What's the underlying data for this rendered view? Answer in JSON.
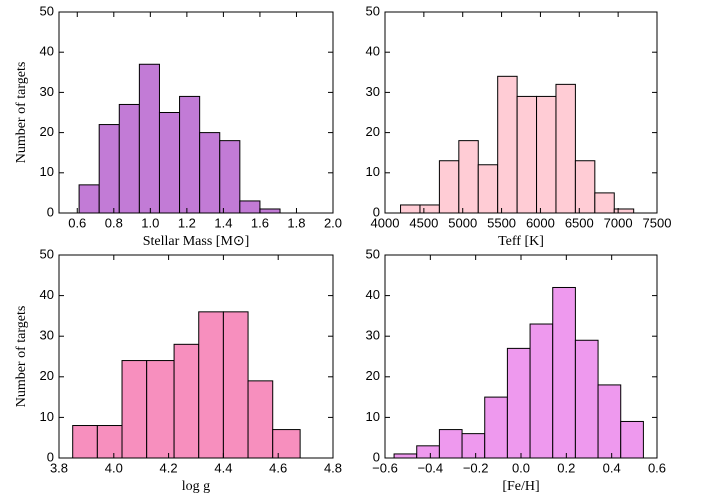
{
  "chart_data": [
    {
      "type": "histogram",
      "xlabel": "Stellar Mass [M⊙]",
      "ylabel": "Number of targets",
      "color": "#c27bd6",
      "bins": [
        0.61,
        0.72,
        0.83,
        0.94,
        1.05,
        1.16,
        1.27,
        1.38,
        1.49,
        1.6,
        1.71
      ],
      "counts": [
        7,
        22,
        27,
        37,
        25,
        29,
        20,
        18,
        3,
        1
      ],
      "xlim": [
        0.5,
        2.0
      ],
      "xticks": [
        0.6,
        0.8,
        {
          "value": 1.0,
          "label": "1.0"
        },
        1.2,
        1.4,
        1.6,
        1.8,
        {
          "value": 2.0,
          "label": "2.0"
        }
      ],
      "ylim": [
        0,
        50
      ],
      "yticks": [
        0,
        10,
        20,
        30,
        40,
        50
      ]
    },
    {
      "type": "histogram",
      "xlabel": "Teff [K]",
      "color": "#ffccd5",
      "bins": [
        4200,
        4450,
        4700,
        4950,
        5200,
        5450,
        5700,
        5950,
        6200,
        6450,
        6700,
        6950,
        7200
      ],
      "counts": [
        2,
        2,
        13,
        18,
        12,
        34,
        29,
        29,
        32,
        13,
        5,
        1
      ],
      "xlim": [
        4000,
        7500
      ],
      "xticks": [
        4000,
        4500,
        5000,
        5500,
        6000,
        6500,
        7000,
        7500
      ],
      "ylim": [
        0,
        50
      ],
      "yticks": [
        0,
        10,
        20,
        30,
        40,
        50
      ]
    },
    {
      "type": "histogram",
      "xlabel": "log g",
      "ylabel": "Number of targets",
      "color": "#f78fbe",
      "bins": [
        3.85,
        3.94,
        4.03,
        4.12,
        4.22,
        4.31,
        4.4,
        4.49,
        4.58,
        4.68
      ],
      "counts": [
        8,
        8,
        24,
        24,
        28,
        36,
        36,
        19,
        7
      ],
      "xlim": [
        3.8,
        4.8
      ],
      "xticks": [
        3.8,
        {
          "value": 4.0,
          "label": "4.0"
        },
        4.2,
        4.4,
        4.6,
        4.8
      ],
      "ylim": [
        0,
        50
      ],
      "yticks": [
        0,
        10,
        20,
        30,
        40,
        50
      ]
    },
    {
      "type": "histogram",
      "xlabel": "[Fe/H]",
      "color": "#ee99ee",
      "bins": [
        -0.56,
        -0.46,
        -0.36,
        -0.26,
        -0.16,
        -0.06,
        0.04,
        0.14,
        0.24,
        0.34,
        0.44,
        0.54
      ],
      "counts": [
        1,
        3,
        7,
        6,
        15,
        27,
        33,
        42,
        29,
        18,
        9
      ],
      "xlim": [
        -0.6,
        0.6
      ],
      "xticks": [
        {
          "value": -0.6,
          "label": "−0.6"
        },
        {
          "value": -0.4,
          "label": "−0.4"
        },
        {
          "value": -0.2,
          "label": "−0.2"
        },
        {
          "value": 0.0,
          "label": "0.0"
        },
        0.2,
        0.4,
        0.6
      ],
      "ylim": [
        0,
        50
      ],
      "yticks": [
        0,
        10,
        20,
        30,
        40,
        50
      ]
    }
  ]
}
